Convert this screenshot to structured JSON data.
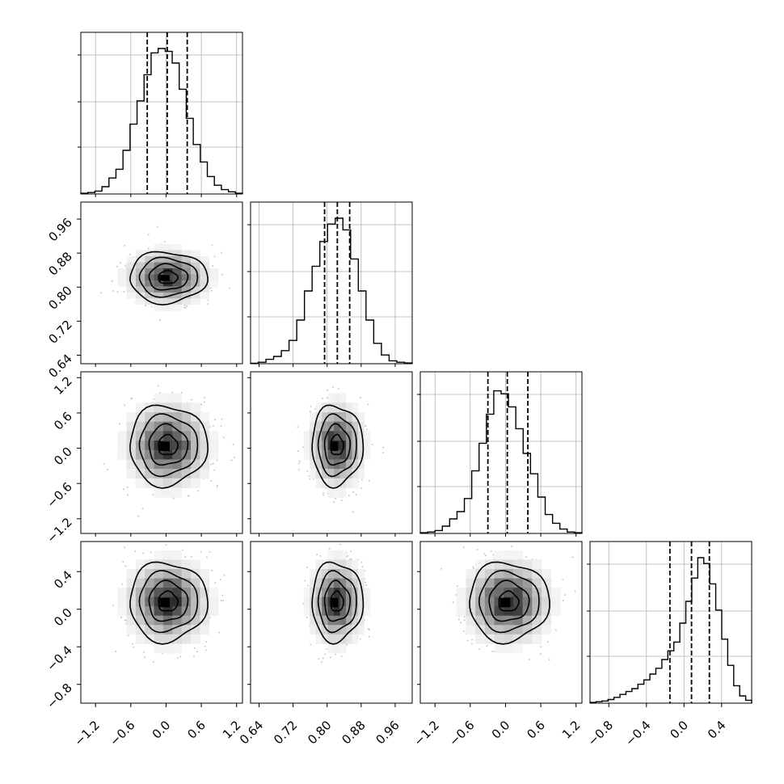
{
  "chart_data": {
    "type": "corner",
    "colors": {
      "line": "#000000",
      "grid": "#b0b0b0",
      "points": "#8c8c8c"
    },
    "grid": true,
    "params": [
      {
        "range": [
          -1.45,
          1.3
        ],
        "ticks": [
          "−1.2",
          "−0.6",
          "0.0",
          "0.6",
          "1.2"
        ],
        "tick_values": [
          -1.2,
          -0.6,
          0.0,
          0.6,
          1.2
        ],
        "quantiles": [
          -0.32,
          0.02,
          0.36
        ],
        "center": 0.03,
        "sd": 0.33
      },
      {
        "range": [
          0.62,
          1.0
        ],
        "ticks": [
          "0.64",
          "0.72",
          "0.80",
          "0.88",
          "0.96"
        ],
        "tick_values": [
          0.64,
          0.72,
          0.8,
          0.88,
          0.96
        ],
        "quantiles": [
          0.794,
          0.824,
          0.853
        ],
        "center": 0.823,
        "sd": 0.03
      },
      {
        "range": [
          -1.45,
          1.3
        ],
        "ticks": [
          "−1.2",
          "−0.6",
          "0.0",
          "0.6",
          "1.2"
        ],
        "tick_values": [
          -1.2,
          -0.6,
          0.0,
          0.6,
          1.2
        ],
        "quantiles": [
          -0.3,
          0.03,
          0.38
        ],
        "center": 0.05,
        "sd": 0.34
      },
      {
        "range": [
          -1.0,
          0.72
        ],
        "ticks": [
          "−0.8",
          "−0.4",
          "0.0",
          "0.4"
        ],
        "tick_values": [
          -0.8,
          -0.4,
          0.0,
          0.4
        ],
        "quantiles": [
          -0.15,
          0.08,
          0.27
        ],
        "center": 0.08,
        "sd": 0.21
      }
    ],
    "histograms": [
      {
        "param": 0,
        "counts": [
          0.005,
          0.01,
          0.02,
          0.05,
          0.11,
          0.17,
          0.3,
          0.48,
          0.64,
          0.82,
          0.97,
          1.0,
          0.98,
          0.9,
          0.72,
          0.52,
          0.34,
          0.22,
          0.12,
          0.06,
          0.03,
          0.015,
          0.005
        ]
      },
      {
        "param": 1,
        "counts": [
          0.003,
          0.01,
          0.03,
          0.05,
          0.09,
          0.16,
          0.3,
          0.5,
          0.67,
          0.84,
          0.96,
          1.0,
          0.92,
          0.72,
          0.5,
          0.3,
          0.14,
          0.06,
          0.02,
          0.01,
          0.005
        ]
      },
      {
        "param": 2,
        "counts": [
          0.005,
          0.01,
          0.02,
          0.05,
          0.1,
          0.15,
          0.24,
          0.43,
          0.62,
          0.82,
          0.98,
          0.96,
          0.87,
          0.72,
          0.55,
          0.41,
          0.25,
          0.13,
          0.07,
          0.03,
          0.01,
          0.005
        ]
      },
      {
        "param": 3,
        "counts": [
          0.005,
          0.01,
          0.015,
          0.025,
          0.04,
          0.06,
          0.08,
          0.1,
          0.13,
          0.16,
          0.2,
          0.24,
          0.3,
          0.36,
          0.42,
          0.55,
          0.7,
          0.86,
          1.0,
          0.96,
          0.82,
          0.64,
          0.44,
          0.26,
          0.12,
          0.05,
          0.02
        ]
      }
    ],
    "scatter_panels": [
      {
        "x_param": 0,
        "y_param": 1
      },
      {
        "x_param": 0,
        "y_param": 2
      },
      {
        "x_param": 1,
        "y_param": 2
      },
      {
        "x_param": 0,
        "y_param": 3
      },
      {
        "x_param": 1,
        "y_param": 3
      },
      {
        "x_param": 2,
        "y_param": 3
      }
    ]
  }
}
